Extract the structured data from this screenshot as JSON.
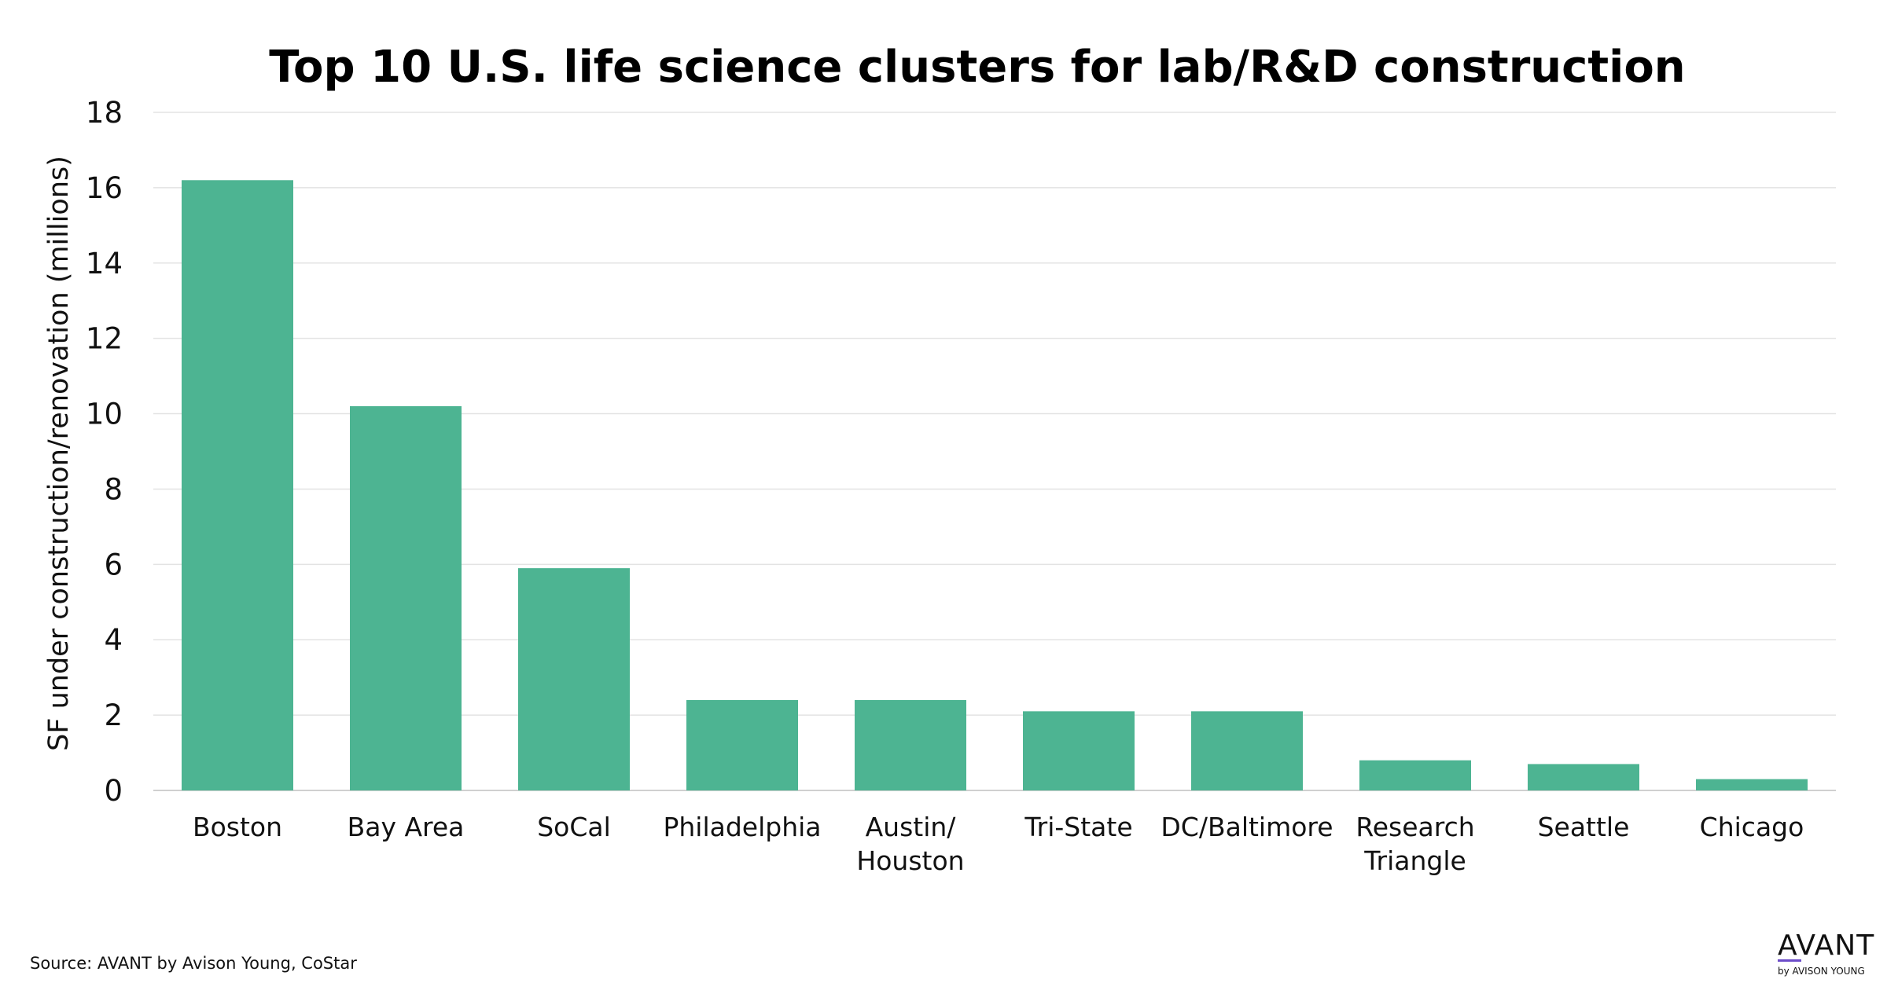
{
  "chart_data": {
    "type": "bar",
    "title": "Top 10 U.S. life science clusters for lab/R&D construction",
    "xlabel": "",
    "ylabel": "SF under construction/renovation (millions)",
    "categories": [
      [
        "Boston"
      ],
      [
        "Bay Area"
      ],
      [
        "SoCal"
      ],
      [
        "Philadelphia"
      ],
      [
        "Austin/",
        "Houston"
      ],
      [
        "Tri-State"
      ],
      [
        "DC/Baltimore"
      ],
      [
        "Research",
        "Triangle"
      ],
      [
        "Seattle"
      ],
      [
        "Chicago"
      ]
    ],
    "values": [
      16.2,
      10.2,
      5.9,
      2.4,
      2.4,
      2.1,
      2.1,
      0.8,
      0.7,
      0.3
    ],
    "ylim": [
      0,
      18
    ],
    "yticks": [
      0,
      2,
      4,
      6,
      8,
      10,
      12,
      14,
      16,
      18
    ],
    "grid": true,
    "bar_color": "#4db492"
  },
  "source": "Source: AVANT by Avison Young, CoStar",
  "logo": {
    "main": "AVANT",
    "sub": "by AVISON YOUNG",
    "accent_color": "#6c4cc9"
  }
}
